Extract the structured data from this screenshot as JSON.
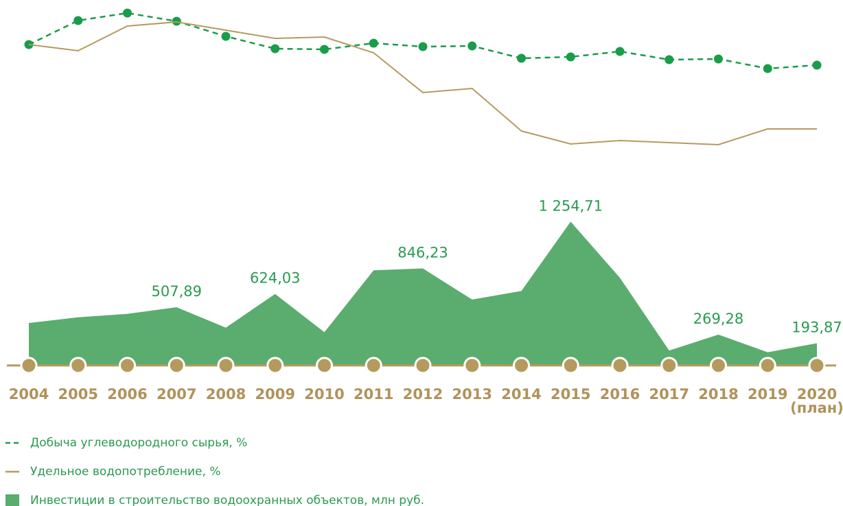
{
  "chart_data": {
    "type": "line-area",
    "categories": [
      "2004",
      "2005",
      "2006",
      "2007",
      "2008",
      "2009",
      "2010",
      "2011",
      "2012",
      "2013",
      "2014",
      "2015",
      "2016",
      "2017",
      "2018",
      "2019",
      "2020"
    ],
    "last_category_note": "(план)",
    "ylim": [
      0,
      115
    ],
    "series": [
      {
        "name": "Добыча углеводородного сырья, %",
        "color": "#1a9c4a",
        "style": "dashed",
        "values": [
          82.5,
          100,
          105.5,
          99.5,
          88.5,
          79.5,
          79,
          83.5,
          81,
          81.5,
          72.5,
          73.5,
          77.5,
          71.5,
          72,
          65,
          67.5
        ]
      },
      {
        "name": "Удельное водопотребление, %",
        "color": "#b59a5e",
        "style": "solid",
        "values": [
          82.5,
          78,
          96,
          99,
          93,
          87,
          88,
          76.5,
          47.5,
          50.5,
          19.5,
          10,
          12.5,
          11,
          9.5,
          21,
          21
        ]
      },
      {
        "name": "Инвестиции в строительство водоохранных объектов, млн руб.",
        "color": "#5aad6e",
        "type": "area",
        "axis": "y2",
        "values": [
          370,
          420,
          450,
          507.89,
          330,
          624.03,
          290,
          830,
          846.23,
          575,
          650,
          1254.71,
          765,
          130,
          269.28,
          115,
          193.87
        ],
        "value_labels": [
          null,
          null,
          null,
          "507,89",
          null,
          "624,03",
          null,
          null,
          "846,23",
          null,
          null,
          "1 254,71",
          null,
          null,
          "269,28",
          null,
          "193,87"
        ]
      }
    ],
    "y2lim": [
      0,
      1400
    ]
  }
}
